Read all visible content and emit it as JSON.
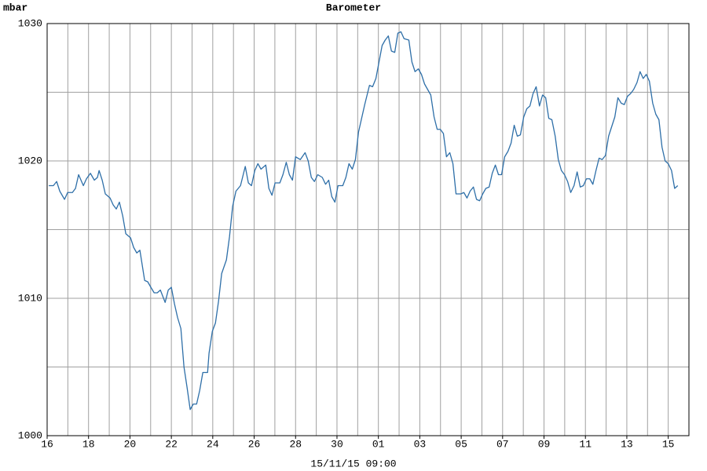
{
  "chart_data": {
    "type": "line",
    "title": "Barometer",
    "ylabel": "mbar",
    "xlabel": "15/11/15 09:00",
    "title_color": "#3a7ab5",
    "grid": true,
    "xlim": [
      0,
      31
    ],
    "ylim": [
      1000,
      1030
    ],
    "xticks": [
      {
        "value": 0,
        "label": "16"
      },
      {
        "value": 2,
        "label": "18"
      },
      {
        "value": 4,
        "label": "20"
      },
      {
        "value": 6,
        "label": "22"
      },
      {
        "value": 8,
        "label": "24"
      },
      {
        "value": 10,
        "label": "26"
      },
      {
        "value": 12,
        "label": "28"
      },
      {
        "value": 14,
        "label": "30"
      },
      {
        "value": 16,
        "label": "01"
      },
      {
        "value": 18,
        "label": "03"
      },
      {
        "value": 20,
        "label": "05"
      },
      {
        "value": 22,
        "label": "07"
      },
      {
        "value": 24,
        "label": "09"
      },
      {
        "value": 26,
        "label": "11"
      },
      {
        "value": 28,
        "label": "13"
      },
      {
        "value": 30,
        "label": "15"
      }
    ],
    "x_minor_ticks": [
      1,
      3,
      5,
      7,
      9,
      11,
      13,
      15,
      17,
      19,
      21,
      23,
      25,
      27,
      29,
      31
    ],
    "yticks": [
      1000,
      1010,
      1020,
      1030
    ],
    "y_minor_ticks": [
      1005,
      1015,
      1025
    ],
    "series": [
      {
        "color": "#2e6fa8",
        "x": [
          0.08,
          0.3,
          0.46,
          0.61,
          0.84,
          0.99,
          1.22,
          1.37,
          1.52,
          1.75,
          1.9,
          2.09,
          2.28,
          2.43,
          2.51,
          2.66,
          2.81,
          3.04,
          3.19,
          3.34,
          3.49,
          3.65,
          3.8,
          4.03,
          4.18,
          4.33,
          4.48,
          4.71,
          4.86,
          5.01,
          5.17,
          5.32,
          5.47,
          5.7,
          5.85,
          6.0,
          6.15,
          6.3,
          6.46,
          6.61,
          6.76,
          6.91,
          7.06,
          7.22,
          7.37,
          7.52,
          7.75,
          7.82,
          7.98,
          8.13,
          8.28,
          8.43,
          8.66,
          8.81,
          8.96,
          9.12,
          9.34,
          9.57,
          9.72,
          9.87,
          10.03,
          10.18,
          10.33,
          10.56,
          10.71,
          10.86,
          11.01,
          11.24,
          11.39,
          11.55,
          11.7,
          11.85,
          12.0,
          12.23,
          12.46,
          12.61,
          12.76,
          12.91,
          13.07,
          13.29,
          13.45,
          13.6,
          13.75,
          13.9,
          14.05,
          14.28,
          14.43,
          14.58,
          14.74,
          14.89,
          15.04,
          15.19,
          15.34,
          15.57,
          15.72,
          15.88,
          16.03,
          16.18,
          16.33,
          16.48,
          16.63,
          16.79,
          16.94,
          17.09,
          17.24,
          17.47,
          17.62,
          17.77,
          17.93,
          18.08,
          18.23,
          18.38,
          18.53,
          18.69,
          18.84,
          18.99,
          19.14,
          19.29,
          19.45,
          19.6,
          19.75,
          19.98,
          20.13,
          20.28,
          20.43,
          20.59,
          20.74,
          20.89,
          21.04,
          21.19,
          21.35,
          21.5,
          21.65,
          21.8,
          21.95,
          22.1,
          22.26,
          22.41,
          22.56,
          22.71,
          22.86,
          23.02,
          23.17,
          23.32,
          23.47,
          23.62,
          23.78,
          23.93,
          24.08,
          24.23,
          24.38,
          24.54,
          24.69,
          24.84,
          24.99,
          25.14,
          25.29,
          25.45,
          25.6,
          25.75,
          25.9,
          26.05,
          26.21,
          26.36,
          26.51,
          26.66,
          26.81,
          26.97,
          27.12,
          27.27,
          27.42,
          27.57,
          27.73,
          27.88,
          28.03,
          28.18,
          28.33,
          28.49,
          28.64,
          28.79,
          28.94,
          29.09,
          29.25,
          29.4,
          29.55,
          29.7,
          29.85,
          30.0,
          30.16,
          30.31,
          30.46
        ],
        "values": [
          1018.2,
          1018.2,
          1018.5,
          1017.8,
          1017.2,
          1017.7,
          1017.7,
          1018.0,
          1019.0,
          1018.2,
          1018.7,
          1019.1,
          1018.6,
          1018.8,
          1019.3,
          1018.6,
          1017.6,
          1017.3,
          1016.8,
          1016.5,
          1017.0,
          1016.0,
          1014.7,
          1014.4,
          1013.7,
          1013.3,
          1013.5,
          1011.3,
          1011.2,
          1010.8,
          1010.4,
          1010.4,
          1010.6,
          1009.7,
          1010.6,
          1010.8,
          1009.6,
          1008.6,
          1007.8,
          1005.0,
          1003.5,
          1001.9,
          1002.3,
          1002.3,
          1003.3,
          1004.6,
          1004.6,
          1006.0,
          1007.6,
          1008.2,
          1009.8,
          1011.8,
          1012.8,
          1014.5,
          1016.7,
          1017.8,
          1018.2,
          1019.6,
          1018.4,
          1018.2,
          1019.3,
          1019.8,
          1019.4,
          1019.7,
          1018.0,
          1017.5,
          1018.4,
          1018.4,
          1019.0,
          1019.9,
          1019.0,
          1018.6,
          1020.3,
          1020.1,
          1020.6,
          1020.0,
          1018.8,
          1018.5,
          1019.0,
          1018.8,
          1018.3,
          1018.6,
          1017.4,
          1017.0,
          1018.2,
          1018.2,
          1018.8,
          1019.8,
          1019.4,
          1020.1,
          1022.1,
          1023.1,
          1024.1,
          1025.5,
          1025.4,
          1026.0,
          1027.2,
          1028.4,
          1028.8,
          1029.1,
          1028.0,
          1027.9,
          1029.3,
          1029.4,
          1028.9,
          1028.8,
          1027.2,
          1026.5,
          1026.7,
          1026.3,
          1025.6,
          1025.2,
          1024.8,
          1023.2,
          1022.3,
          1022.3,
          1022.0,
          1020.3,
          1020.6,
          1019.8,
          1017.6,
          1017.6,
          1017.7,
          1017.3,
          1017.8,
          1018.1,
          1017.2,
          1017.1,
          1017.6,
          1018.0,
          1018.1,
          1019.1,
          1019.7,
          1019.0,
          1019.0,
          1020.3,
          1020.7,
          1021.3,
          1022.6,
          1021.8,
          1021.9,
          1023.2,
          1023.8,
          1024.0,
          1024.9,
          1025.4,
          1024.0,
          1024.8,
          1024.6,
          1023.1,
          1023.0,
          1021.8,
          1020.1,
          1019.3,
          1019.0,
          1018.5,
          1017.7,
          1018.2,
          1019.2,
          1018.1,
          1018.2,
          1018.7,
          1018.7,
          1018.3,
          1019.3,
          1020.2,
          1020.1,
          1020.4,
          1021.8,
          1022.5,
          1023.2,
          1024.6,
          1024.2,
          1024.1,
          1024.7,
          1024.9,
          1025.2,
          1025.7,
          1026.5,
          1026.0,
          1026.3,
          1025.8,
          1024.2,
          1023.4,
          1023.0,
          1021.0,
          1020.0,
          1019.8,
          1019.3,
          1018.0,
          1018.2
        ]
      }
    ]
  }
}
